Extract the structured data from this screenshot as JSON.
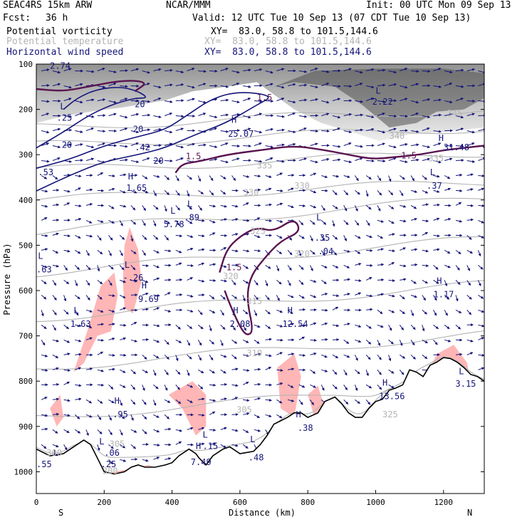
{
  "header": {
    "experiment": "SEAC4RS 15km ARW",
    "producer": "NCAR/MMM",
    "init": "Init: 00 UTC Mon 09 Sep 13",
    "fcst_label": "Fcst:",
    "fcst_value": "36 h",
    "valid": "Valid: 12 UTC Tue 10 Sep 13 (07 CDT Tue 10 Sep 13)",
    "fields": [
      {
        "name": "Potential vorticity",
        "xy": "XY=  83.0, 58.8 to 101.5,144.6",
        "color": "#000000"
      },
      {
        "name": "Potential temperature",
        "xy": "XY=  83.0, 58.8 to 101.5,144.6",
        "color": "#b4b4b4"
      },
      {
        "name": "Horizontal wind speed",
        "xy": "XY=  83.0, 58.8 to 101.5,144.6",
        "color": "#14147a"
      }
    ]
  },
  "chart_data": {
    "type": "cross-section",
    "xlabel": "Distance (km)",
    "ylabel": "Pressure (hPa)",
    "xlim": [
      0,
      1320
    ],
    "ylim": [
      1050,
      100
    ],
    "xticks": [
      0,
      200,
      400,
      600,
      800,
      1000,
      1200
    ],
    "yticks": [
      100,
      200,
      300,
      400,
      500,
      600,
      700,
      800,
      900,
      1000
    ],
    "end_labels": {
      "left": "S",
      "right": "N"
    },
    "colors": {
      "pv_positive": "#ffb6b6",
      "theta": "#b4b4b4",
      "wind_contour": "#14147a",
      "pv_contour": "#5a1450",
      "vectors": "#14147a",
      "terrain": "#000000"
    },
    "terrain": {
      "x": [
        0,
        40,
        80,
        110,
        140,
        160,
        180,
        200,
        230,
        260,
        280,
        300,
        320,
        350,
        380,
        400,
        420,
        450,
        470,
        480,
        500,
        520,
        550,
        570,
        600,
        640,
        660,
        680,
        700,
        740,
        760,
        780,
        800,
        830,
        850,
        880,
        900,
        920,
        940,
        960,
        980,
        1000,
        1020,
        1040,
        1060,
        1080,
        1100,
        1120,
        1140,
        1160,
        1180,
        1200,
        1220,
        1240,
        1260,
        1280,
        1300,
        1320
      ],
      "p": [
        950,
        965,
        960,
        945,
        930,
        940,
        970,
        1000,
        1005,
        1000,
        990,
        985,
        990,
        990,
        985,
        980,
        965,
        950,
        960,
        970,
        985,
        965,
        950,
        945,
        960,
        955,
        940,
        920,
        895,
        880,
        870,
        870,
        880,
        870,
        845,
        835,
        850,
        870,
        880,
        880,
        860,
        845,
        840,
        820,
        815,
        808,
        775,
        780,
        790,
        765,
        758,
        748,
        750,
        758,
        770,
        785,
        790,
        800
      ]
    },
    "theta_isentropes": [
      {
        "value": 300,
        "label": "300"
      },
      {
        "value": 305,
        "label": "305"
      },
      {
        "value": 310,
        "label": "310"
      },
      {
        "value": 315,
        "label": "315"
      },
      {
        "value": 320,
        "label": "320"
      },
      {
        "value": 325,
        "label": "325"
      },
      {
        "value": 330,
        "label": "330"
      },
      {
        "value": 335,
        "label": "335"
      },
      {
        "value": 340,
        "label": "340"
      },
      {
        "value": 345,
        "label": "345"
      }
    ],
    "annotations": [
      {
        "text": "2.74",
        "x": 40,
        "p": 110,
        "color": "#14147a"
      },
      {
        "text": "L",
        "x": 70,
        "p": 200,
        "color": "#14147a"
      },
      {
        "text": ".25",
        "x": 60,
        "p": 225,
        "color": "#14147a"
      },
      {
        "text": "20",
        "x": 75,
        "p": 285,
        "color": "#14147a"
      },
      {
        "text": ".53",
        "x": 5,
        "p": 345,
        "color": "#14147a"
      },
      {
        "text": "20",
        "x": 290,
        "p": 195,
        "color": "#14147a"
      },
      {
        "text": "20",
        "x": 285,
        "p": 250,
        "color": "#14147a"
      },
      {
        "text": ".42",
        "x": 290,
        "p": 290,
        "color": "#14147a"
      },
      {
        "text": "20",
        "x": 345,
        "p": 320,
        "color": "#14147a"
      },
      {
        "text": "1.5",
        "x": 440,
        "p": 310,
        "color": "#5a1450"
      },
      {
        "text": "1.5",
        "x": 650,
        "p": 180,
        "color": "#5a1450"
      },
      {
        "text": "H",
        "x": 575,
        "p": 230,
        "color": "#14147a"
      },
      {
        "text": "25.07",
        "x": 565,
        "p": 260,
        "color": "#14147a"
      },
      {
        "text": "L",
        "x": 1000,
        "p": 165,
        "color": "#14147a"
      },
      {
        "text": "2.22",
        "x": 990,
        "p": 190,
        "color": "#14147a"
      },
      {
        "text": "H",
        "x": 1185,
        "p": 270,
        "color": "#14147a"
      },
      {
        "text": "31.48",
        "x": 1200,
        "p": 290,
        "color": "#14147a"
      },
      {
        "text": "1.5",
        "x": 1075,
        "p": 308,
        "color": "#5a1450"
      },
      {
        "text": "L",
        "x": 1160,
        "p": 345,
        "color": "#14147a"
      },
      {
        "text": ".37",
        "x": 1150,
        "p": 375,
        "color": "#14147a"
      },
      {
        "text": "H",
        "x": 270,
        "p": 355,
        "color": "#14147a"
      },
      {
        "text": "1.65",
        "x": 265,
        "p": 380,
        "color": "#14147a"
      },
      {
        "text": "L",
        "x": 395,
        "p": 430,
        "color": "#14147a"
      },
      {
        "text": "5.78",
        "x": 375,
        "p": 460,
        "color": "#14147a"
      },
      {
        "text": "L",
        "x": 445,
        "p": 415,
        "color": "#14147a"
      },
      {
        "text": ".89",
        "x": 435,
        "p": 445,
        "color": "#14147a"
      },
      {
        "text": "L",
        "x": 825,
        "p": 445,
        "color": "#14147a"
      },
      {
        "text": ".35",
        "x": 820,
        "p": 490,
        "color": "#14147a"
      },
      {
        "text": ".04",
        "x": 830,
        "p": 520,
        "color": "#14147a"
      },
      {
        "text": "1.5",
        "x": 560,
        "p": 555,
        "color": "#5a1450"
      },
      {
        "text": "L",
        "x": 5,
        "p": 530,
        "color": "#14147a"
      },
      {
        "text": ".63",
        "x": 0,
        "p": 560,
        "color": "#14147a"
      },
      {
        "text": "L",
        "x": 260,
        "p": 550,
        "color": "#14147a"
      },
      {
        "text": "-.26",
        "x": 255,
        "p": 578,
        "color": "#14147a"
      },
      {
        "text": "H",
        "x": 310,
        "p": 595,
        "color": "#14147a"
      },
      {
        "text": "9.69",
        "x": 300,
        "p": 625,
        "color": "#14147a"
      },
      {
        "text": "L",
        "x": 110,
        "p": 650,
        "color": "#14147a"
      },
      {
        "text": "1.63",
        "x": 100,
        "p": 680,
        "color": "#14147a"
      },
      {
        "text": "H",
        "x": 580,
        "p": 650,
        "color": "#14147a"
      },
      {
        "text": "2.08",
        "x": 570,
        "p": 680,
        "color": "#14147a"
      },
      {
        "text": "H",
        "x": 740,
        "p": 650,
        "color": "#14147a"
      },
      {
        "text": "12.54",
        "x": 725,
        "p": 680,
        "color": "#14147a"
      },
      {
        "text": "H",
        "x": 1180,
        "p": 585,
        "color": "#14147a"
      },
      {
        "text": "1.17",
        "x": 1170,
        "p": 615,
        "color": "#14147a"
      },
      {
        "text": "H",
        "x": 1020,
        "p": 810,
        "color": "#14147a"
      },
      {
        "text": "13.56",
        "x": 1010,
        "p": 840,
        "color": "#14147a"
      },
      {
        "text": "L",
        "x": 1245,
        "p": 785,
        "color": "#14147a"
      },
      {
        "text": "3.15",
        "x": 1235,
        "p": 812,
        "color": "#14147a"
      },
      {
        "text": "H",
        "x": 230,
        "p": 850,
        "color": "#14147a"
      },
      {
        "text": ".95",
        "x": 225,
        "p": 880,
        "color": "#14147a"
      },
      {
        "text": "H",
        "x": 765,
        "p": 880,
        "color": "#14147a"
      },
      {
        "text": ".38",
        "x": 770,
        "p": 910,
        "color": "#14147a"
      },
      {
        "text": "L",
        "x": 185,
        "p": 940,
        "color": "#14147a"
      },
      {
        "text": ".06",
        "x": 200,
        "p": 965,
        "color": "#14147a"
      },
      {
        "text": ".25",
        "x": 190,
        "p": 990,
        "color": "#14147a"
      },
      {
        "text": "L",
        "x": 50,
        "p": 965,
        "color": "#14147a"
      },
      {
        "text": ".55",
        "x": 0,
        "p": 990,
        "color": "#14147a"
      },
      {
        "text": "H",
        "x": 470,
        "p": 950,
        "color": "#14147a"
      },
      {
        "text": "7.49",
        "x": 455,
        "p": 985,
        "color": "#14147a"
      },
      {
        "text": "L",
        "x": 490,
        "p": 925,
        "color": "#14147a"
      },
      {
        "text": ".15",
        "x": 490,
        "p": 950,
        "color": "#14147a"
      },
      {
        "text": "L",
        "x": 630,
        "p": 935,
        "color": "#14147a"
      },
      {
        "text": ".48",
        "x": 625,
        "p": 975,
        "color": "#14147a"
      },
      {
        "text": "345",
        "x": 1210,
        "p": 215,
        "color": "#b4b4b4"
      },
      {
        "text": "340",
        "x": 1040,
        "p": 265,
        "color": "#b4b4b4"
      },
      {
        "text": "335",
        "x": 1155,
        "p": 315,
        "color": "#b4b4b4"
      },
      {
        "text": "335",
        "x": 650,
        "p": 330,
        "color": "#b4b4b4"
      },
      {
        "text": "330",
        "x": 760,
        "p": 375,
        "color": "#b4b4b4"
      },
      {
        "text": "330",
        "x": 610,
        "p": 390,
        "color": "#b4b4b4"
      },
      {
        "text": "325",
        "x": 630,
        "p": 475,
        "color": "#b4b4b4"
      },
      {
        "text": "320",
        "x": 760,
        "p": 525,
        "color": "#b4b4b4"
      },
      {
        "text": "320",
        "x": 550,
        "p": 575,
        "color": "#b4b4b4"
      },
      {
        "text": "315",
        "x": 620,
        "p": 630,
        "color": "#b4b4b4"
      },
      {
        "text": "310",
        "x": 620,
        "p": 745,
        "color": "#b4b4b4"
      },
      {
        "text": "305",
        "x": 590,
        "p": 870,
        "color": "#b4b4b4"
      },
      {
        "text": "305",
        "x": 215,
        "p": 945,
        "color": "#b4b4b4"
      },
      {
        "text": "300",
        "x": 30,
        "p": 965,
        "color": "#b4b4b4"
      },
      {
        "text": "300",
        "x": 195,
        "p": 1005,
        "color": "#b4b4b4"
      },
      {
        "text": "325",
        "x": 1020,
        "p": 880,
        "color": "#b4b4b4"
      }
    ]
  }
}
